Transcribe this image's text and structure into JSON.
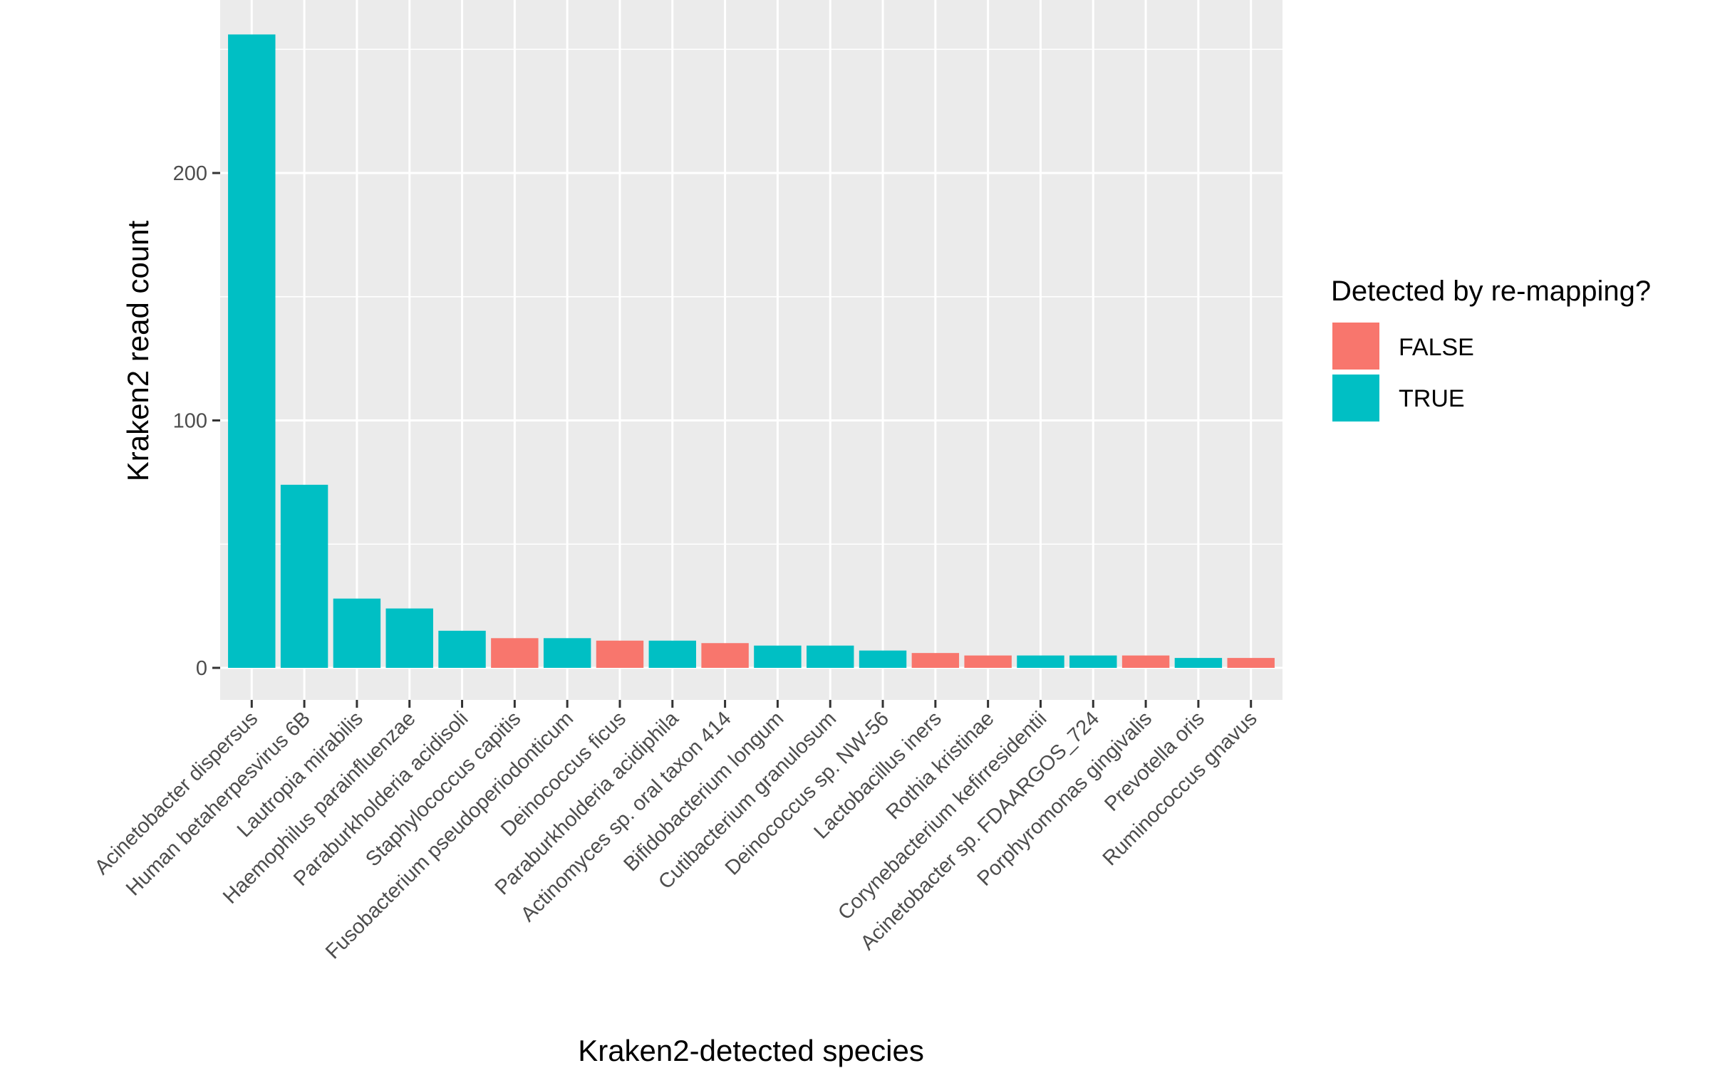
{
  "chart_data": {
    "type": "bar",
    "title": "",
    "xlabel": "Kraken2-detected species",
    "ylabel": "Kraken2 read count",
    "ylim": [
      -13,
      270
    ],
    "yticks": [
      0,
      100,
      200
    ],
    "grid": true,
    "legend": {
      "title": "Detected by re-mapping?",
      "position": "right",
      "entries": [
        {
          "label": "FALSE",
          "color": "#F8766D"
        },
        {
          "label": "TRUE",
          "color": "#00BFC4"
        }
      ]
    },
    "categories": [
      "Acinetobacter dispersus",
      "Human betaherpesvirus 6B",
      "Lautropia mirabilis",
      "Haemophilus parainfluenzae",
      "Paraburkholderia acidisoli",
      "Staphylococcus capitis",
      "Fusobacterium pseudoperiodonticum",
      "Deinococcus ficus",
      "Paraburkholderia acidiphila",
      "Actinomyces sp. oral taxon 414",
      "Bifidobacterium longum",
      "Cutibacterium granulosum",
      "Deinococcus sp. NW-56",
      "Lactobacillus iners",
      "Rothia kristinae",
      "Corynebacterium kefirresidentii",
      "Acinetobacter sp. FDAARGOS_724",
      "Porphyromonas gingivalis",
      "Prevotella oris",
      "Ruminococcus gnavus"
    ],
    "values": [
      256,
      74,
      28,
      24,
      15,
      12,
      12,
      11,
      11,
      10,
      9,
      9,
      7,
      6,
      5,
      5,
      5,
      5,
      4,
      4
    ],
    "detected": [
      "TRUE",
      "TRUE",
      "TRUE",
      "TRUE",
      "TRUE",
      "FALSE",
      "TRUE",
      "FALSE",
      "TRUE",
      "FALSE",
      "TRUE",
      "TRUE",
      "TRUE",
      "FALSE",
      "FALSE",
      "TRUE",
      "TRUE",
      "FALSE",
      "TRUE",
      "FALSE"
    ]
  }
}
